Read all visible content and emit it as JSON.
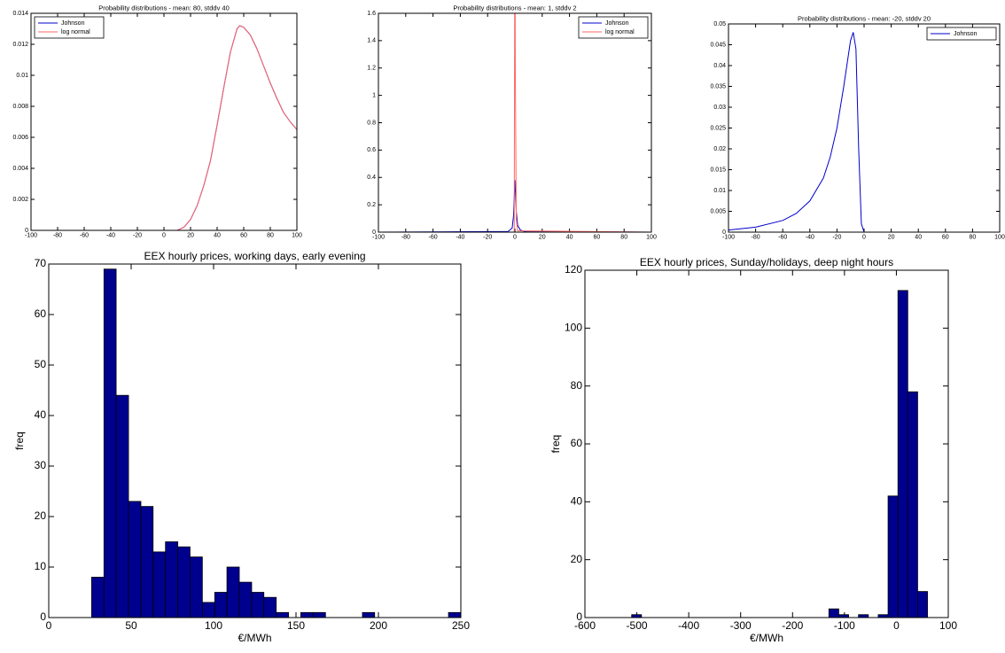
{
  "chart_data": [
    {
      "type": "line",
      "title": "Probability distributions - mean: 80, stddv 40",
      "xlim": [
        -100,
        100
      ],
      "xticks": [
        -100,
        -80,
        -60,
        -40,
        -20,
        0,
        20,
        40,
        60,
        80,
        100
      ],
      "ylim": [
        0,
        0.014
      ],
      "yticks": [
        0,
        0.002,
        0.004,
        0.006,
        0.008,
        0.01,
        0.012,
        0.014
      ],
      "legend": "upper left",
      "series": [
        {
          "name": "Johnson",
          "color": "#0000cc",
          "x": [
            -100,
            -50,
            0,
            10,
            15,
            20,
            25,
            30,
            35,
            40,
            45,
            50,
            55,
            57,
            60,
            65,
            70,
            75,
            80,
            85,
            90,
            95,
            100
          ],
          "values": [
            0,
            0,
            0,
            0,
            0.0002,
            0.0007,
            0.0016,
            0.0029,
            0.0045,
            0.0068,
            0.0092,
            0.0115,
            0.013,
            0.0132,
            0.0131,
            0.0126,
            0.0117,
            0.0106,
            0.0095,
            0.0085,
            0.0076,
            0.007,
            0.0065
          ]
        },
        {
          "name": "log normal",
          "color": "#ff6666",
          "x": [
            -100,
            -50,
            0,
            10,
            15,
            20,
            25,
            30,
            35,
            40,
            45,
            50,
            55,
            57,
            60,
            65,
            70,
            75,
            80,
            85,
            90,
            95,
            100
          ],
          "values": [
            0,
            0,
            0,
            0,
            0.0002,
            0.0007,
            0.0016,
            0.0029,
            0.0045,
            0.0068,
            0.0092,
            0.0115,
            0.013,
            0.0132,
            0.0131,
            0.0126,
            0.0117,
            0.0106,
            0.0095,
            0.0085,
            0.0076,
            0.007,
            0.0065
          ]
        }
      ]
    },
    {
      "type": "line",
      "title": "Probability distributions - mean: 1, stddv 2",
      "xlim": [
        -100,
        100
      ],
      "xticks": [
        -100,
        -80,
        -60,
        -40,
        -20,
        0,
        20,
        40,
        60,
        80,
        100
      ],
      "ylim": [
        0,
        1.6
      ],
      "yticks": [
        0,
        0.2,
        0.4,
        0.6,
        0.8,
        1,
        1.2,
        1.4,
        1.6
      ],
      "legend": "upper right",
      "series": [
        {
          "name": "Johnson",
          "color": "#0000cc",
          "x": [
            -100,
            -5,
            -2,
            -1,
            0,
            1,
            2,
            4,
            8,
            100
          ],
          "values": [
            0,
            0.005,
            0.03,
            0.12,
            0.38,
            0.15,
            0.05,
            0.015,
            0.003,
            0
          ]
        },
        {
          "name": "log normal",
          "color": "#ff6666",
          "x": [
            -100,
            -0.5,
            0,
            0.3,
            1,
            2,
            100
          ],
          "values": [
            0,
            0,
            2.5,
            1.2,
            0.1,
            0.01,
            0
          ]
        }
      ]
    },
    {
      "type": "line",
      "title": "Probability distributions - mean: -20, stddv 20",
      "xlim": [
        -100,
        100
      ],
      "xticks": [
        -100,
        -80,
        -60,
        -40,
        -20,
        0,
        20,
        40,
        60,
        80,
        100
      ],
      "ylim": [
        0,
        0.05
      ],
      "yticks": [
        0,
        0.005,
        0.01,
        0.015,
        0.02,
        0.025,
        0.03,
        0.035,
        0.04,
        0.045,
        0.05
      ],
      "legend": "upper right",
      "series": [
        {
          "name": "Johnson",
          "color": "#0000cc",
          "x": [
            -100,
            -80,
            -60,
            -50,
            -40,
            -30,
            -25,
            -20,
            -15,
            -10,
            -8,
            -6,
            -4,
            -2,
            0,
            100
          ],
          "values": [
            0.0005,
            0.0012,
            0.0028,
            0.0045,
            0.0075,
            0.013,
            0.018,
            0.025,
            0.035,
            0.046,
            0.048,
            0.044,
            0.02,
            0.002,
            0,
            0
          ]
        }
      ]
    },
    {
      "type": "histogram",
      "title": "EEX hourly prices, working days, early evening",
      "xlabel": "€/MWh",
      "ylabel": "freq",
      "color": "#00008f",
      "xlim": [
        0,
        250
      ],
      "xticks": [
        0,
        50,
        100,
        150,
        200,
        250
      ],
      "ylim": [
        0,
        70
      ],
      "yticks": [
        0,
        10,
        20,
        30,
        40,
        50,
        60,
        70
      ],
      "bins": [
        26,
        33.5,
        40.9,
        48.4,
        55.9,
        63.3,
        70.8,
        78.3,
        85.7,
        93.2,
        100.7,
        108.1,
        115.6,
        123.1,
        130.5,
        138,
        145.5,
        152.9,
        160.4,
        167.9,
        175.3,
        182.8,
        190.3,
        197.7,
        205.2,
        212.7,
        220.1,
        227.6,
        235.1,
        242.5,
        250
      ],
      "values": [
        8,
        69,
        44,
        23,
        22,
        13,
        15,
        14,
        12,
        3,
        5,
        10,
        7,
        5,
        4,
        1,
        0,
        1,
        1,
        0,
        0,
        0,
        1,
        0,
        0,
        0,
        0,
        0,
        0,
        1
      ]
    },
    {
      "type": "histogram",
      "title": "EEX hourly prices, Sunday/holidays, deep night hours",
      "xlabel": "€/MWh",
      "ylabel": "freq",
      "color": "#00008f",
      "xlim": [
        -600,
        100
      ],
      "xticks": [
        -600,
        -500,
        -400,
        -300,
        -200,
        -100,
        0,
        100
      ],
      "ylim": [
        0,
        120
      ],
      "yticks": [
        0,
        20,
        40,
        60,
        80,
        100,
        120
      ],
      "bins": [
        -510,
        -491,
        -472,
        -453,
        -434,
        -415,
        -396,
        -377,
        -358,
        -339,
        -320,
        -301,
        -282,
        -263,
        -244,
        -225,
        -206,
        -187,
        -168,
        -149,
        -130,
        -111,
        -92,
        -73,
        -54,
        -35,
        -16,
        3,
        22,
        41,
        60
      ],
      "values": [
        1,
        0,
        0,
        0,
        0,
        0,
        0,
        0,
        0,
        0,
        0,
        0,
        0,
        0,
        0,
        0,
        0,
        0,
        0,
        0,
        3,
        1,
        0,
        1,
        0,
        1,
        42,
        113,
        78,
        9
      ]
    }
  ]
}
